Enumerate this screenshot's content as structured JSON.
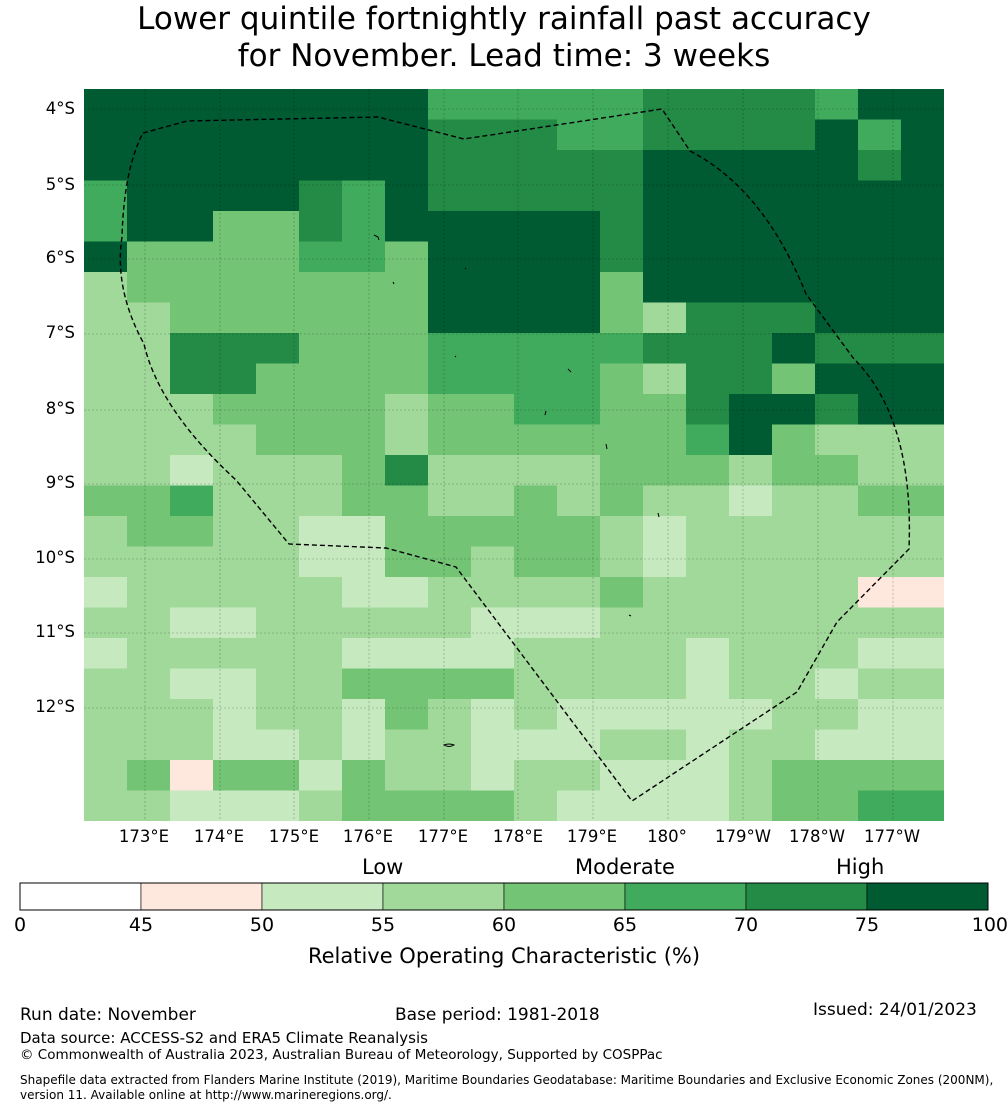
{
  "title": {
    "line1": "Lower quintile fortnightly rainfall past accuracy",
    "line2": "for November. Lead time: 3 weeks"
  },
  "map": {
    "lat_labels": [
      "4°S",
      "5°S",
      "6°S",
      "7°S",
      "8°S",
      "9°S",
      "10°S",
      "11°S",
      "12°S"
    ],
    "lon_labels": [
      "173°E",
      "174°E",
      "175°E",
      "176°E",
      "177°E",
      "178°E",
      "179°E",
      "180°",
      "179°W",
      "178°W",
      "177°W"
    ],
    "legend_categories": [
      "Low",
      "Moderate",
      "High"
    ],
    "colorbar_ticks": [
      "0",
      "45",
      "50",
      "55",
      "60",
      "65",
      "70",
      "75",
      "100"
    ],
    "colorbar_colors": [
      "#ffffff",
      "#fee8de",
      "#c7e9c0",
      "#a1d99b",
      "#74c476",
      "#41ab5d",
      "#238b45",
      "#005a32"
    ],
    "colorbar_label": "Relative Operating Characteristic (%)",
    "grid_rows": [
      "77777777555556666577",
      "77777777666556666757",
      "77777777666667777767",
      "57777657666667777777",
      "57744657777767777777",
      "74444554777767777777",
      "34444444777747777777",
      "33444444777743666777",
      "33666444555556667666",
      "33664444555543664777",
      "33344443445544677677",
      "3333444344444457433",
      "3323334633334443443",
      "4453334433434332334",
      "3443322444443233333",
      "3333322443443233333",
      "2333332233334333331",
      "3322333332223333333",
      "2333332222333323332",
      "3322334444333323323",
      "3332332432322222332",
      "3332232332223323322",
      "3414424332332223444",
      "3322234444322223445"
    ]
  },
  "footer": {
    "run_date": "Run date: November",
    "base_period": "Base period: 1981-2018",
    "issued": "Issued: 24/01/2023",
    "data_source": "Data source: ACCESS-S2 and ERA5 Climate Reanalysis",
    "copyright": "© Commonwealth of Australia 2023, Australian Bureau of Meteorology, Supported by COSPPac",
    "shapefile_line1": "Shapefile data extracted from Flanders Marine Institute (2019), Maritime Boundaries Geodatabase: Maritime Boundaries and Exclusive Economic Zones (200NM),",
    "shapefile_line2": "version 11. Available online at http://www.marineregions.org/."
  }
}
